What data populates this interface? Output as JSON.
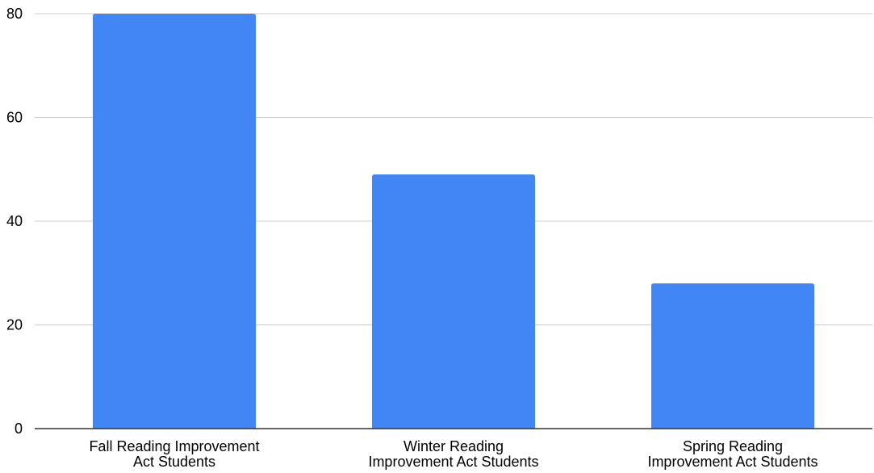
{
  "chart_data": {
    "type": "bar",
    "categories": [
      [
        "Fall Reading Improvement",
        "Act Students"
      ],
      [
        "Winter Reading",
        "Improvement Act Students"
      ],
      [
        "Spring Reading",
        "Improvement Act Students"
      ]
    ],
    "values": [
      80,
      49,
      28
    ],
    "ylim": [
      0,
      80
    ],
    "yticks": [
      0,
      20,
      40,
      60,
      80
    ],
    "grid": true,
    "legend": "none",
    "title": "",
    "xlabel": "",
    "ylabel": "",
    "colors": {
      "bar": "#4285F4",
      "grid": "#cccccc",
      "axis": "#333333",
      "text": "#000000"
    }
  }
}
